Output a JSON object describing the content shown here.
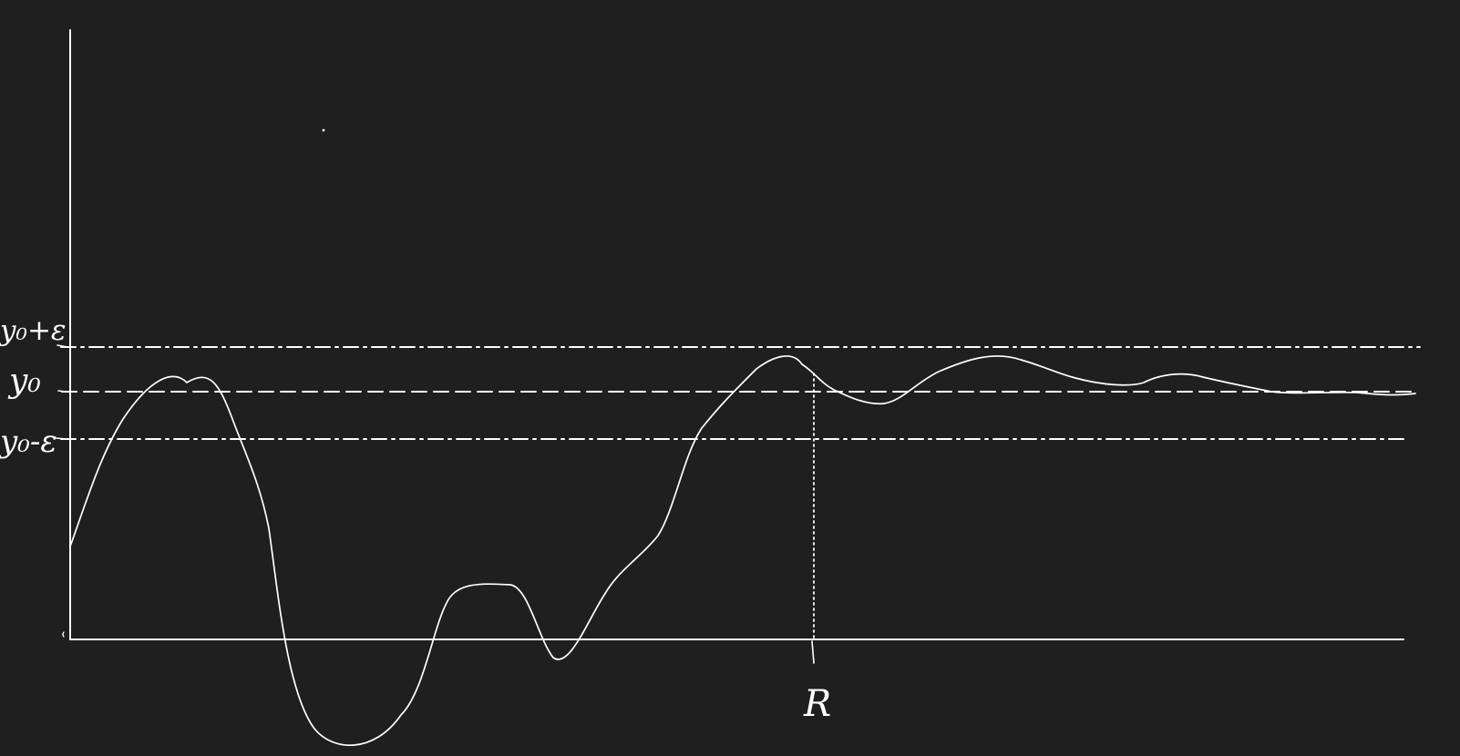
{
  "colors": {
    "background": "#1f1f1f",
    "ink": "#ffffff"
  },
  "labels": {
    "upper_band": "y₀+ε",
    "target_level": "y₀",
    "lower_band": "y₀-ε",
    "tick_r": "R"
  },
  "lines": {
    "upper_band_style": "dash-dot",
    "target_level_style": "dashed",
    "lower_band_style": "dash-dot",
    "tick_r_guide_style": "dotted"
  }
}
